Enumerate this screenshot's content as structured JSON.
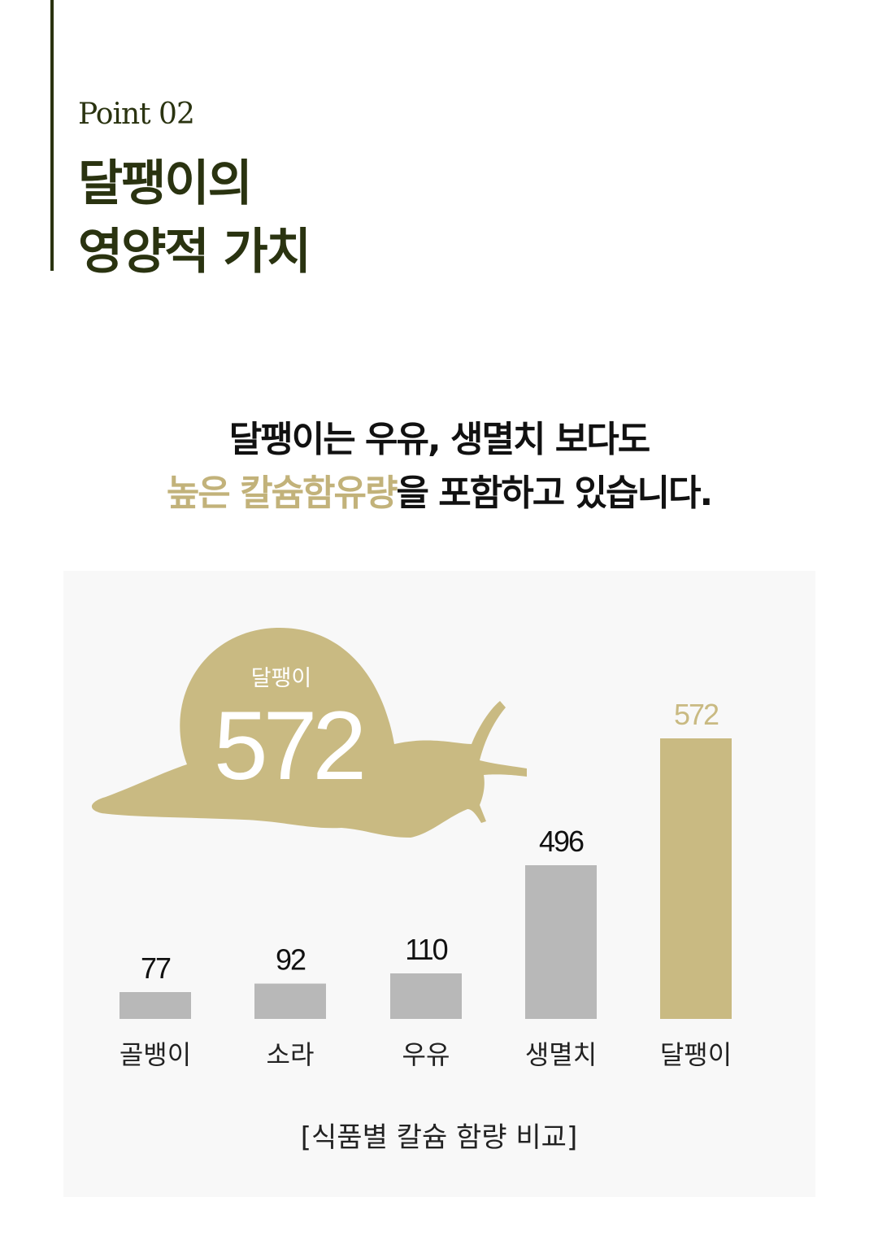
{
  "header": {
    "point_label": "Point 02",
    "title_line1": "달팽이의",
    "title_line2": "영양적 가치"
  },
  "headline": {
    "line1": "달팽이는 우유, 생멸치 보다도",
    "line2_highlight": "높은 칼슘함유량",
    "line2_rest": "을 포함하고 있습니다."
  },
  "colors": {
    "accent": "#c9ba82",
    "dark_green": "#2a3310",
    "bar_gray": "#b8b8b8",
    "panel_bg": "#f8f8f8"
  },
  "snail_badge": {
    "label": "달팽이",
    "value": "572",
    "icon": "snail-silhouette"
  },
  "chart_data": {
    "type": "bar",
    "title": "[식품별 칼슘 함량 비교]",
    "categories": [
      "골뱅이",
      "소라",
      "우유",
      "생멸치",
      "달팽이"
    ],
    "values": [
      77,
      92,
      110,
      496,
      572
    ],
    "highlight_category": "달팽이",
    "grid": false
  }
}
